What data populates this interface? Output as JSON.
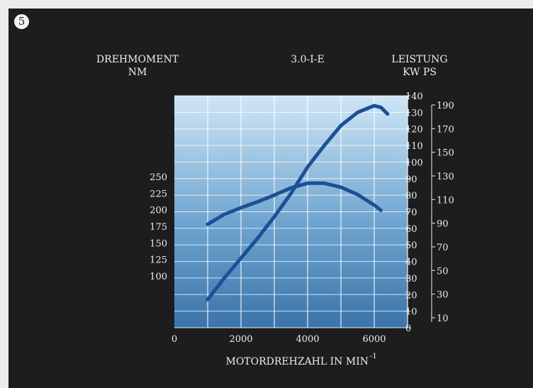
{
  "figure_number": "5",
  "chart_data": {
    "type": "line",
    "title": "3.0-I-E",
    "left_axis_title": [
      "DREHMOMENT",
      "NM"
    ],
    "right_axis_title": [
      "LEISTUNG",
      "KW PS"
    ],
    "xlabel": "MOTORDREHZAHL IN MIN",
    "xlabel_superscript": "-1",
    "xlim": [
      0,
      7000
    ],
    "x_ticks": [
      0,
      2000,
      4000,
      6000
    ],
    "x_grid": [
      1000,
      2000,
      3000,
      4000,
      5000,
      6000,
      7000
    ],
    "kw_range": [
      0,
      140
    ],
    "kw_ticks": [
      0,
      10,
      20,
      30,
      40,
      50,
      60,
      70,
      80,
      90,
      100,
      110,
      120,
      130,
      140
    ],
    "ps_ticks": [
      10,
      30,
      50,
      70,
      90,
      110,
      130,
      150,
      170,
      190
    ],
    "nm_ticks": [
      100,
      125,
      150,
      175,
      200,
      225,
      250
    ],
    "grid": true,
    "background": {
      "top": "#cfe6f6",
      "mid": "#6ea4cf",
      "bottom": "#3b74aa"
    },
    "line_color": "#1d4f96",
    "series": [
      {
        "axis": "left",
        "x": [
          1000,
          1500,
          2000,
          2500,
          3000,
          3500,
          4000,
          4500,
          5000,
          5500,
          6000,
          6200
        ],
        "y": [
          178,
          193,
          203,
          212,
          222,
          233,
          240,
          240,
          234,
          223,
          207,
          199
        ]
      },
      {
        "axis": "right",
        "x": [
          1000,
          1500,
          2000,
          2500,
          3000,
          3500,
          4000,
          4500,
          5000,
          5500,
          6000,
          6200,
          6400
        ],
        "y": [
          17,
          30,
          42,
          54,
          67,
          81,
          97,
          110,
          122,
          130,
          134,
          133,
          129
        ]
      }
    ]
  }
}
